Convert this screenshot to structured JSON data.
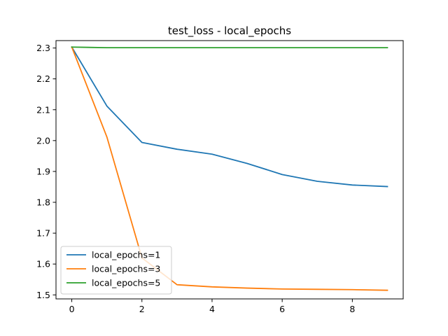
{
  "chart_data": {
    "type": "line",
    "title": "test_loss - local_epochs",
    "xlabel": "",
    "ylabel": "",
    "x": [
      0,
      1,
      2,
      3,
      4,
      5,
      6,
      7,
      8,
      9
    ],
    "xlim": [
      -0.45,
      9.45
    ],
    "ylim": [
      1.487,
      2.324
    ],
    "xticks": [
      0,
      2,
      4,
      6,
      8
    ],
    "yticks": [
      1.5,
      1.6,
      1.7,
      1.8,
      1.9,
      2.0,
      2.1,
      2.2,
      2.3
    ],
    "grid": false,
    "legend_position": "lower-left",
    "series": [
      {
        "name": "local_epochs=1",
        "color": "#1f77b4",
        "values": [
          2.303,
          2.112,
          1.994,
          1.972,
          1.956,
          1.926,
          1.89,
          1.868,
          1.856,
          1.851
        ]
      },
      {
        "name": "local_epochs=3",
        "color": "#ff7f0e",
        "values": [
          2.303,
          2.012,
          1.62,
          1.533,
          1.526,
          1.522,
          1.519,
          1.518,
          1.517,
          1.515
        ]
      },
      {
        "name": "local_epochs=5",
        "color": "#2ca02c",
        "values": [
          2.303,
          2.301,
          2.301,
          2.301,
          2.301,
          2.301,
          2.301,
          2.301,
          2.301,
          2.301
        ]
      }
    ]
  }
}
